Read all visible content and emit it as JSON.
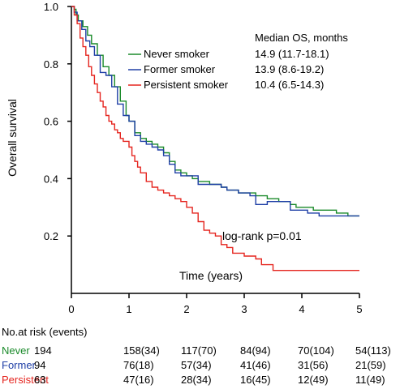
{
  "chart_data": {
    "type": "line",
    "subtype": "kaplan-meier",
    "ylabel": "Overall survival",
    "xlabel": "Time (years)",
    "xlim": [
      0,
      5
    ],
    "ylim": [
      0,
      1.0
    ],
    "x_ticks": [
      "0",
      "1",
      "2",
      "3",
      "4",
      "5"
    ],
    "y_ticks": [
      "0.2",
      "0.4",
      "0.6",
      "0.8",
      "1.0"
    ],
    "legend_header": "Median OS, months",
    "annotation": "log-rank p=0.01",
    "series": [
      {
        "name": "Never smoker",
        "median_os": "14.9 (11.7-18.1)",
        "color": "#1a8a2a",
        "points": [
          [
            0,
            1.0
          ],
          [
            0.05,
            0.99
          ],
          [
            0.08,
            0.97
          ],
          [
            0.12,
            0.95
          ],
          [
            0.2,
            0.93
          ],
          [
            0.28,
            0.9
          ],
          [
            0.35,
            0.87
          ],
          [
            0.45,
            0.83
          ],
          [
            0.55,
            0.79
          ],
          [
            0.65,
            0.76
          ],
          [
            0.75,
            0.72
          ],
          [
            0.85,
            0.67
          ],
          [
            0.95,
            0.62
          ],
          [
            1.0,
            0.6
          ],
          [
            1.1,
            0.56
          ],
          [
            1.2,
            0.54
          ],
          [
            1.3,
            0.53
          ],
          [
            1.4,
            0.52
          ],
          [
            1.5,
            0.51
          ],
          [
            1.6,
            0.49
          ],
          [
            1.7,
            0.46
          ],
          [
            1.8,
            0.43
          ],
          [
            1.9,
            0.42
          ],
          [
            2.0,
            0.41
          ],
          [
            2.1,
            0.4
          ],
          [
            2.2,
            0.39
          ],
          [
            2.4,
            0.38
          ],
          [
            2.6,
            0.37
          ],
          [
            2.7,
            0.36
          ],
          [
            2.8,
            0.36
          ],
          [
            2.9,
            0.35
          ],
          [
            3.0,
            0.35
          ],
          [
            3.2,
            0.34
          ],
          [
            3.4,
            0.33
          ],
          [
            3.6,
            0.32
          ],
          [
            3.8,
            0.31
          ],
          [
            3.9,
            0.3
          ],
          [
            4.0,
            0.3
          ],
          [
            4.2,
            0.29
          ],
          [
            4.4,
            0.29
          ],
          [
            4.6,
            0.28
          ],
          [
            4.8,
            0.27
          ],
          [
            5.0,
            0.27
          ]
        ]
      },
      {
        "name": "Former smoker",
        "median_os": "13.9 (8.6-19.2)",
        "color": "#1f3fa6",
        "points": [
          [
            0,
            1.0
          ],
          [
            0.05,
            0.98
          ],
          [
            0.1,
            0.95
          ],
          [
            0.18,
            0.92
          ],
          [
            0.25,
            0.88
          ],
          [
            0.32,
            0.86
          ],
          [
            0.4,
            0.83
          ],
          [
            0.5,
            0.77
          ],
          [
            0.6,
            0.76
          ],
          [
            0.7,
            0.72
          ],
          [
            0.8,
            0.66
          ],
          [
            0.9,
            0.62
          ],
          [
            1.0,
            0.6
          ],
          [
            1.1,
            0.55
          ],
          [
            1.2,
            0.53
          ],
          [
            1.3,
            0.52
          ],
          [
            1.4,
            0.51
          ],
          [
            1.5,
            0.5
          ],
          [
            1.6,
            0.48
          ],
          [
            1.7,
            0.45
          ],
          [
            1.8,
            0.42
          ],
          [
            1.9,
            0.41
          ],
          [
            2.0,
            0.41
          ],
          [
            2.2,
            0.38
          ],
          [
            2.5,
            0.38
          ],
          [
            2.6,
            0.37
          ],
          [
            2.7,
            0.36
          ],
          [
            2.8,
            0.36
          ],
          [
            2.9,
            0.35
          ],
          [
            3.0,
            0.35
          ],
          [
            3.1,
            0.34
          ],
          [
            3.2,
            0.31
          ],
          [
            3.3,
            0.31
          ],
          [
            3.4,
            0.32
          ],
          [
            3.6,
            0.32
          ],
          [
            3.8,
            0.29
          ],
          [
            3.9,
            0.29
          ],
          [
            4.0,
            0.29
          ],
          [
            4.1,
            0.28
          ],
          [
            4.2,
            0.28
          ],
          [
            4.3,
            0.27
          ],
          [
            4.5,
            0.27
          ],
          [
            4.7,
            0.27
          ],
          [
            5.0,
            0.27
          ]
        ]
      },
      {
        "name": "Persistent smoker",
        "median_os": "10.4 (6.5-14.3)",
        "color": "#e5251f",
        "points": [
          [
            0,
            1.0
          ],
          [
            0.05,
            0.97
          ],
          [
            0.1,
            0.94
          ],
          [
            0.15,
            0.89
          ],
          [
            0.2,
            0.86
          ],
          [
            0.25,
            0.83
          ],
          [
            0.3,
            0.79
          ],
          [
            0.35,
            0.76
          ],
          [
            0.4,
            0.73
          ],
          [
            0.45,
            0.7
          ],
          [
            0.5,
            0.67
          ],
          [
            0.55,
            0.65
          ],
          [
            0.6,
            0.62
          ],
          [
            0.65,
            0.6
          ],
          [
            0.7,
            0.59
          ],
          [
            0.75,
            0.57
          ],
          [
            0.8,
            0.56
          ],
          [
            0.85,
            0.54
          ],
          [
            0.9,
            0.53
          ],
          [
            1.0,
            0.51
          ],
          [
            1.05,
            0.48
          ],
          [
            1.1,
            0.46
          ],
          [
            1.15,
            0.44
          ],
          [
            1.2,
            0.42
          ],
          [
            1.3,
            0.39
          ],
          [
            1.4,
            0.37
          ],
          [
            1.5,
            0.36
          ],
          [
            1.6,
            0.35
          ],
          [
            1.7,
            0.34
          ],
          [
            1.8,
            0.33
          ],
          [
            1.9,
            0.32
          ],
          [
            2.0,
            0.3
          ],
          [
            2.1,
            0.28
          ],
          [
            2.2,
            0.25
          ],
          [
            2.3,
            0.22
          ],
          [
            2.4,
            0.21
          ],
          [
            2.5,
            0.2
          ],
          [
            2.6,
            0.17
          ],
          [
            2.7,
            0.16
          ],
          [
            2.8,
            0.14
          ],
          [
            2.9,
            0.14
          ],
          [
            3.0,
            0.13
          ],
          [
            3.1,
            0.13
          ],
          [
            3.2,
            0.12
          ],
          [
            3.3,
            0.1
          ],
          [
            3.4,
            0.1
          ],
          [
            3.5,
            0.08
          ],
          [
            4.0,
            0.08
          ],
          [
            4.5,
            0.08
          ],
          [
            5.0,
            0.08
          ]
        ]
      }
    ]
  },
  "risk_table": {
    "header": "No.at risk (events)",
    "rows": [
      {
        "label": "Never",
        "color": "#1a8a2a",
        "values": [
          "194",
          "158(34)",
          "117(70)",
          "84(94)",
          "70(104)",
          "54(113)"
        ]
      },
      {
        "label": "Former",
        "color": "#1f3fa6",
        "values": [
          "94",
          "76(18)",
          "57(34)",
          "41(46)",
          "31(56)",
          "21(59)"
        ]
      },
      {
        "label": "Persistent",
        "color": "#e5251f",
        "values": [
          "63",
          "47(16)",
          "28(34)",
          "16(45)",
          "12(49)",
          "11(49)"
        ]
      }
    ]
  }
}
